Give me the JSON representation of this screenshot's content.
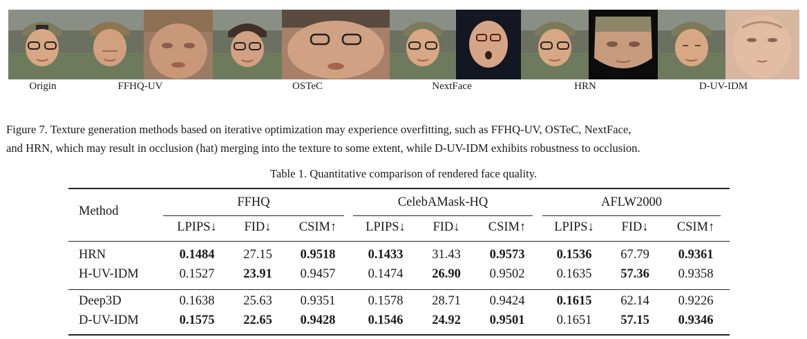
{
  "figure": {
    "labels": [
      "Origin",
      "FFHQ-UV",
      "OSTeC",
      "NextFace",
      "HRN",
      "D-UV-IDM"
    ],
    "caption_line1": "Figure 7. Texture generation methods based on iterative optimization may experience overfitting, such as FFHQ-UV, OSTeC, NextFace,",
    "caption_line2": "and HRN, which may result in occlusion (hat) merging into the texture to some extent, while D-UV-IDM exhibits robustness to occlusion."
  },
  "table": {
    "caption": "Table 1. Quantitative comparison of rendered face quality.",
    "method_header": "Method",
    "datasets": [
      "FFHQ",
      "CelebAMask-HQ",
      "AFLW2000"
    ],
    "metrics": [
      "LPIPS↓",
      "FID↓",
      "CSIM↑",
      "LPIPS↓",
      "FID↓",
      "CSIM↑",
      "LPIPS↓",
      "FID↓",
      "CSIM↑"
    ],
    "rows": [
      {
        "method": "HRN",
        "values": [
          "0.1484",
          "27.15",
          "0.9518",
          "0.1433",
          "31.43",
          "0.9573",
          "0.1536",
          "67.79",
          "0.9361"
        ],
        "bold": [
          true,
          false,
          true,
          true,
          false,
          true,
          true,
          false,
          true
        ]
      },
      {
        "method": "H-UV-IDM",
        "values": [
          "0.1527",
          "23.91",
          "0.9457",
          "0.1474",
          "26.90",
          "0.9502",
          "0.1635",
          "57.36",
          "0.9358"
        ],
        "bold": [
          false,
          true,
          false,
          false,
          true,
          false,
          false,
          true,
          false
        ]
      },
      {
        "method": "Deep3D",
        "values": [
          "0.1638",
          "25.63",
          "0.9351",
          "0.1578",
          "28.71",
          "0.9424",
          "0.1615",
          "62.14",
          "0.9226"
        ],
        "bold": [
          false,
          false,
          false,
          false,
          false,
          false,
          true,
          false,
          false
        ]
      },
      {
        "method": "D-UV-IDM",
        "values": [
          "0.1575",
          "22.65",
          "0.9428",
          "0.1546",
          "24.92",
          "0.9501",
          "0.1651",
          "57.15",
          "0.9346"
        ],
        "bold": [
          true,
          true,
          true,
          true,
          true,
          true,
          false,
          true,
          true
        ]
      }
    ]
  }
}
